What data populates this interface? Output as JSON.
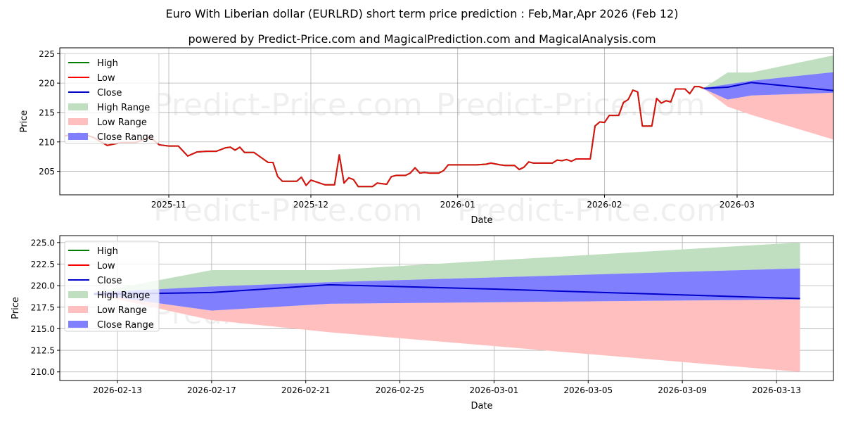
{
  "header": {
    "title": "Euro With Liberian dollar (EURLRD) short term price prediction : Feb,Mar,Apr 2026 (Feb 12)",
    "subtitle": "powered by Predict-Price.com and MagicalPrediction.com and MagicalAnalysis.com"
  },
  "watermark": "Predict-Price.com",
  "legend": [
    "High",
    "Low",
    "Close",
    "High Range",
    "Low Range",
    "Close Range"
  ],
  "colors": {
    "high": "#008000",
    "low": "#ff0000",
    "close": "#0000ff",
    "high_range": "#c0dfc0",
    "low_range": "#ffbfbf",
    "close_range": "#8080ff",
    "grid": "#b0b0b0"
  },
  "chart_data": [
    {
      "type": "line",
      "title": "",
      "xlabel": "Date",
      "ylabel": "Price",
      "ylim": [
        201,
        226
      ],
      "yticks": [
        205,
        210,
        215,
        220,
        225
      ],
      "xticks": [
        "2025-11",
        "2025-12",
        "2026-01",
        "2026-02",
        "2026-03"
      ],
      "grid": true,
      "legend_position": "upper left",
      "series": [
        {
          "name": "Low",
          "points": [
            [
              "2025-10-10",
              211.0
            ],
            [
              "2025-10-13",
              211.5
            ],
            [
              "2025-10-16",
              210.8
            ],
            [
              "2025-10-19",
              209.4
            ],
            [
              "2025-10-22",
              209.9
            ],
            [
              "2025-10-25",
              209.9
            ],
            [
              "2025-10-28",
              210.8
            ],
            [
              "2025-10-30",
              209.5
            ],
            [
              "2025-11-01",
              209.3
            ],
            [
              "2025-11-03",
              209.3
            ],
            [
              "2025-11-05",
              207.6
            ],
            [
              "2025-11-07",
              208.3
            ],
            [
              "2025-11-09",
              208.4
            ],
            [
              "2025-11-11",
              208.4
            ],
            [
              "2025-11-13",
              209.0
            ],
            [
              "2025-11-14",
              209.1
            ],
            [
              "2025-11-15",
              208.6
            ],
            [
              "2025-11-16",
              209.1
            ],
            [
              "2025-11-17",
              208.2
            ],
            [
              "2025-11-19",
              208.2
            ],
            [
              "2025-11-22",
              206.5
            ],
            [
              "2025-11-23",
              206.5
            ],
            [
              "2025-11-24",
              204.1
            ],
            [
              "2025-11-25",
              203.3
            ],
            [
              "2025-11-28",
              203.3
            ],
            [
              "2025-11-29",
              204.0
            ],
            [
              "2025-11-30",
              202.6
            ],
            [
              "2025-12-01",
              203.5
            ],
            [
              "2025-12-04",
              202.7
            ],
            [
              "2025-12-06",
              202.7
            ],
            [
              "2025-12-07",
              207.8
            ],
            [
              "2025-12-08",
              203.0
            ],
            [
              "2025-12-09",
              203.9
            ],
            [
              "2025-12-10",
              203.6
            ],
            [
              "2025-12-11",
              202.4
            ],
            [
              "2025-12-14",
              202.4
            ],
            [
              "2025-12-15",
              203.0
            ],
            [
              "2025-12-17",
              202.8
            ],
            [
              "2025-12-18",
              204.1
            ],
            [
              "2025-12-19",
              204.3
            ],
            [
              "2025-12-21",
              204.3
            ],
            [
              "2025-12-22",
              204.7
            ],
            [
              "2025-12-23",
              205.6
            ],
            [
              "2025-12-24",
              204.7
            ],
            [
              "2025-12-25",
              204.8
            ],
            [
              "2025-12-26",
              204.7
            ],
            [
              "2025-12-28",
              204.7
            ],
            [
              "2025-12-29",
              205.1
            ],
            [
              "2025-12-30",
              206.1
            ],
            [
              "2026-01-05",
              206.1
            ],
            [
              "2026-01-07",
              206.2
            ],
            [
              "2026-01-08",
              206.4
            ],
            [
              "2026-01-10",
              206.1
            ],
            [
              "2026-01-11",
              206.0
            ],
            [
              "2026-01-13",
              206.0
            ],
            [
              "2026-01-14",
              205.3
            ],
            [
              "2026-01-15",
              205.7
            ],
            [
              "2026-01-16",
              206.6
            ],
            [
              "2026-01-17",
              206.4
            ],
            [
              "2026-01-21",
              206.4
            ],
            [
              "2026-01-22",
              206.9
            ],
            [
              "2026-01-23",
              206.8
            ],
            [
              "2026-01-24",
              207.0
            ],
            [
              "2026-01-25",
              206.7
            ],
            [
              "2026-01-26",
              207.1
            ],
            [
              "2026-01-29",
              207.1
            ],
            [
              "2026-01-30",
              212.7
            ],
            [
              "2026-01-31",
              213.4
            ],
            [
              "2026-02-01",
              213.3
            ],
            [
              "2026-02-02",
              214.5
            ],
            [
              "2026-02-04",
              214.5
            ],
            [
              "2026-02-05",
              216.7
            ],
            [
              "2026-02-06",
              217.2
            ],
            [
              "2026-02-07",
              218.8
            ],
            [
              "2026-02-08",
              218.5
            ],
            [
              "2026-02-09",
              212.7
            ],
            [
              "2026-02-11",
              212.7
            ],
            [
              "2026-02-12",
              217.4
            ],
            [
              "2026-02-13",
              216.6
            ],
            [
              "2026-02-14",
              217.0
            ],
            [
              "2026-02-15",
              216.8
            ],
            [
              "2026-02-16",
              219.0
            ],
            [
              "2026-02-18",
              219.0
            ],
            [
              "2026-02-19",
              218.2
            ],
            [
              "2026-02-20",
              219.4
            ],
            [
              "2026-02-21",
              219.4
            ],
            [
              "2026-02-22",
              219.1
            ]
          ]
        },
        {
          "name": "Close",
          "points": [
            [
              "2026-02-22",
              219.1
            ],
            [
              "2026-02-27",
              219.3
            ],
            [
              "2026-03-04",
              220.1
            ],
            [
              "2026-03-09",
              219.7
            ],
            [
              "2026-03-23",
              218.6
            ]
          ]
        },
        {
          "name": "High Range",
          "upper": [
            [
              "2026-02-22",
              219.2
            ],
            [
              "2026-02-27",
              221.8
            ],
            [
              "2026-03-04",
              221.8
            ],
            [
              "2026-03-23",
              225.0
            ]
          ],
          "lower": [
            [
              "2026-02-22",
              219.1
            ],
            [
              "2026-02-27",
              219.8
            ],
            [
              "2026-03-04",
              220.4
            ],
            [
              "2026-03-23",
              222.0
            ]
          ]
        },
        {
          "name": "Close Range",
          "upper": [
            [
              "2026-02-22",
              219.2
            ],
            [
              "2026-02-27",
              219.8
            ],
            [
              "2026-03-04",
              220.4
            ],
            [
              "2026-03-23",
              222.0
            ]
          ],
          "lower": [
            [
              "2026-02-22",
              219.0
            ],
            [
              "2026-02-27",
              217.2
            ],
            [
              "2026-03-04",
              217.9
            ],
            [
              "2026-03-23",
              218.4
            ]
          ]
        },
        {
          "name": "Low Range",
          "upper": [
            [
              "2026-02-22",
              219.0
            ],
            [
              "2026-02-27",
              217.2
            ],
            [
              "2026-03-04",
              217.9
            ],
            [
              "2026-03-23",
              218.4
            ]
          ],
          "lower": [
            [
              "2026-02-22",
              219.0
            ],
            [
              "2026-02-27",
              216.0
            ],
            [
              "2026-03-04",
              214.6
            ],
            [
              "2026-03-23",
              210.0
            ]
          ]
        }
      ]
    },
    {
      "type": "line",
      "title": "",
      "xlabel": "Date",
      "ylabel": "Price",
      "ylim": [
        209.0,
        225.8
      ],
      "yticks": [
        210.0,
        212.5,
        215.0,
        217.5,
        220.0,
        222.5,
        225.0
      ],
      "ytick_labels": [
        "210.0",
        "212.5",
        "215.0",
        "217.5",
        "220.0",
        "222.5",
        "225.0"
      ],
      "xticks": [
        "2026-02-13",
        "2026-02-17",
        "2026-02-21",
        "2026-02-25",
        "2026-03-01",
        "2026-03-05",
        "2026-03-09",
        "2026-03-13"
      ],
      "grid": true,
      "legend_position": "upper left",
      "series": [
        {
          "name": "Close",
          "points": [
            [
              "2026-02-12",
              219.0
            ],
            [
              "2026-02-17",
              219.2
            ],
            [
              "2026-02-22",
              220.1
            ],
            [
              "2026-03-01",
              219.6
            ],
            [
              "2026-03-14",
              218.5
            ]
          ]
        },
        {
          "name": "High Range",
          "upper": [
            [
              "2026-02-12",
              219.2
            ],
            [
              "2026-02-17",
              221.8
            ],
            [
              "2026-02-22",
              221.8
            ],
            [
              "2026-03-14",
              225.0
            ]
          ],
          "lower": [
            [
              "2026-02-12",
              219.1
            ],
            [
              "2026-02-17",
              219.9
            ],
            [
              "2026-02-22",
              220.4
            ],
            [
              "2026-03-14",
              222.0
            ]
          ]
        },
        {
          "name": "Close Range",
          "upper": [
            [
              "2026-02-12",
              219.2
            ],
            [
              "2026-02-17",
              219.9
            ],
            [
              "2026-02-22",
              220.4
            ],
            [
              "2026-03-14",
              222.0
            ]
          ],
          "lower": [
            [
              "2026-02-12",
              219.0
            ],
            [
              "2026-02-17",
              217.1
            ],
            [
              "2026-02-22",
              217.9
            ],
            [
              "2026-03-14",
              218.4
            ]
          ]
        },
        {
          "name": "Low Range",
          "upper": [
            [
              "2026-02-12",
              219.0
            ],
            [
              "2026-02-17",
              217.1
            ],
            [
              "2026-02-22",
              217.9
            ],
            [
              "2026-03-14",
              218.4
            ]
          ],
          "lower": [
            [
              "2026-02-12",
              219.0
            ],
            [
              "2026-02-17",
              216.0
            ],
            [
              "2026-02-22",
              214.6
            ],
            [
              "2026-03-14",
              210.0
            ]
          ]
        }
      ]
    }
  ]
}
